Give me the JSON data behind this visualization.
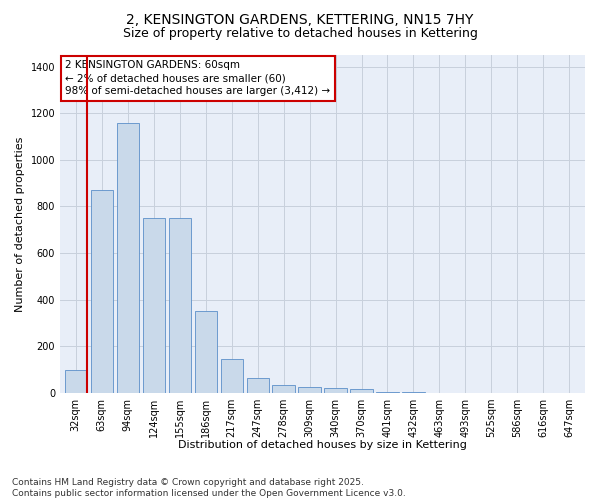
{
  "title": "2, KENSINGTON GARDENS, KETTERING, NN15 7HY",
  "subtitle": "Size of property relative to detached houses in Kettering",
  "xlabel": "Distribution of detached houses by size in Kettering",
  "ylabel": "Number of detached properties",
  "categories": [
    "32sqm",
    "63sqm",
    "94sqm",
    "124sqm",
    "155sqm",
    "186sqm",
    "217sqm",
    "247sqm",
    "278sqm",
    "309sqm",
    "340sqm",
    "370sqm",
    "401sqm",
    "432sqm",
    "463sqm",
    "493sqm",
    "525sqm",
    "586sqm",
    "616sqm",
    "647sqm"
  ],
  "values": [
    100,
    870,
    1160,
    750,
    750,
    350,
    145,
    65,
    35,
    25,
    20,
    15,
    5,
    2,
    1,
    1,
    0,
    0,
    0,
    0
  ],
  "bar_color": "#c9d9ea",
  "bar_edge_color": "#5b8fc9",
  "vline_color": "#cc0000",
  "annotation_text": "2 KENSINGTON GARDENS: 60sqm\n← 2% of detached houses are smaller (60)\n98% of semi-detached houses are larger (3,412) →",
  "annotation_box_color": "#cc0000",
  "grid_color": "#c8d0dc",
  "background_color": "#e8eef8",
  "ylim": [
    0,
    1450
  ],
  "yticks": [
    0,
    200,
    400,
    600,
    800,
    1000,
    1200,
    1400
  ],
  "footer": "Contains HM Land Registry data © Crown copyright and database right 2025.\nContains public sector information licensed under the Open Government Licence v3.0.",
  "title_fontsize": 10,
  "subtitle_fontsize": 9,
  "label_fontsize": 8,
  "tick_fontsize": 7,
  "footer_fontsize": 6.5
}
